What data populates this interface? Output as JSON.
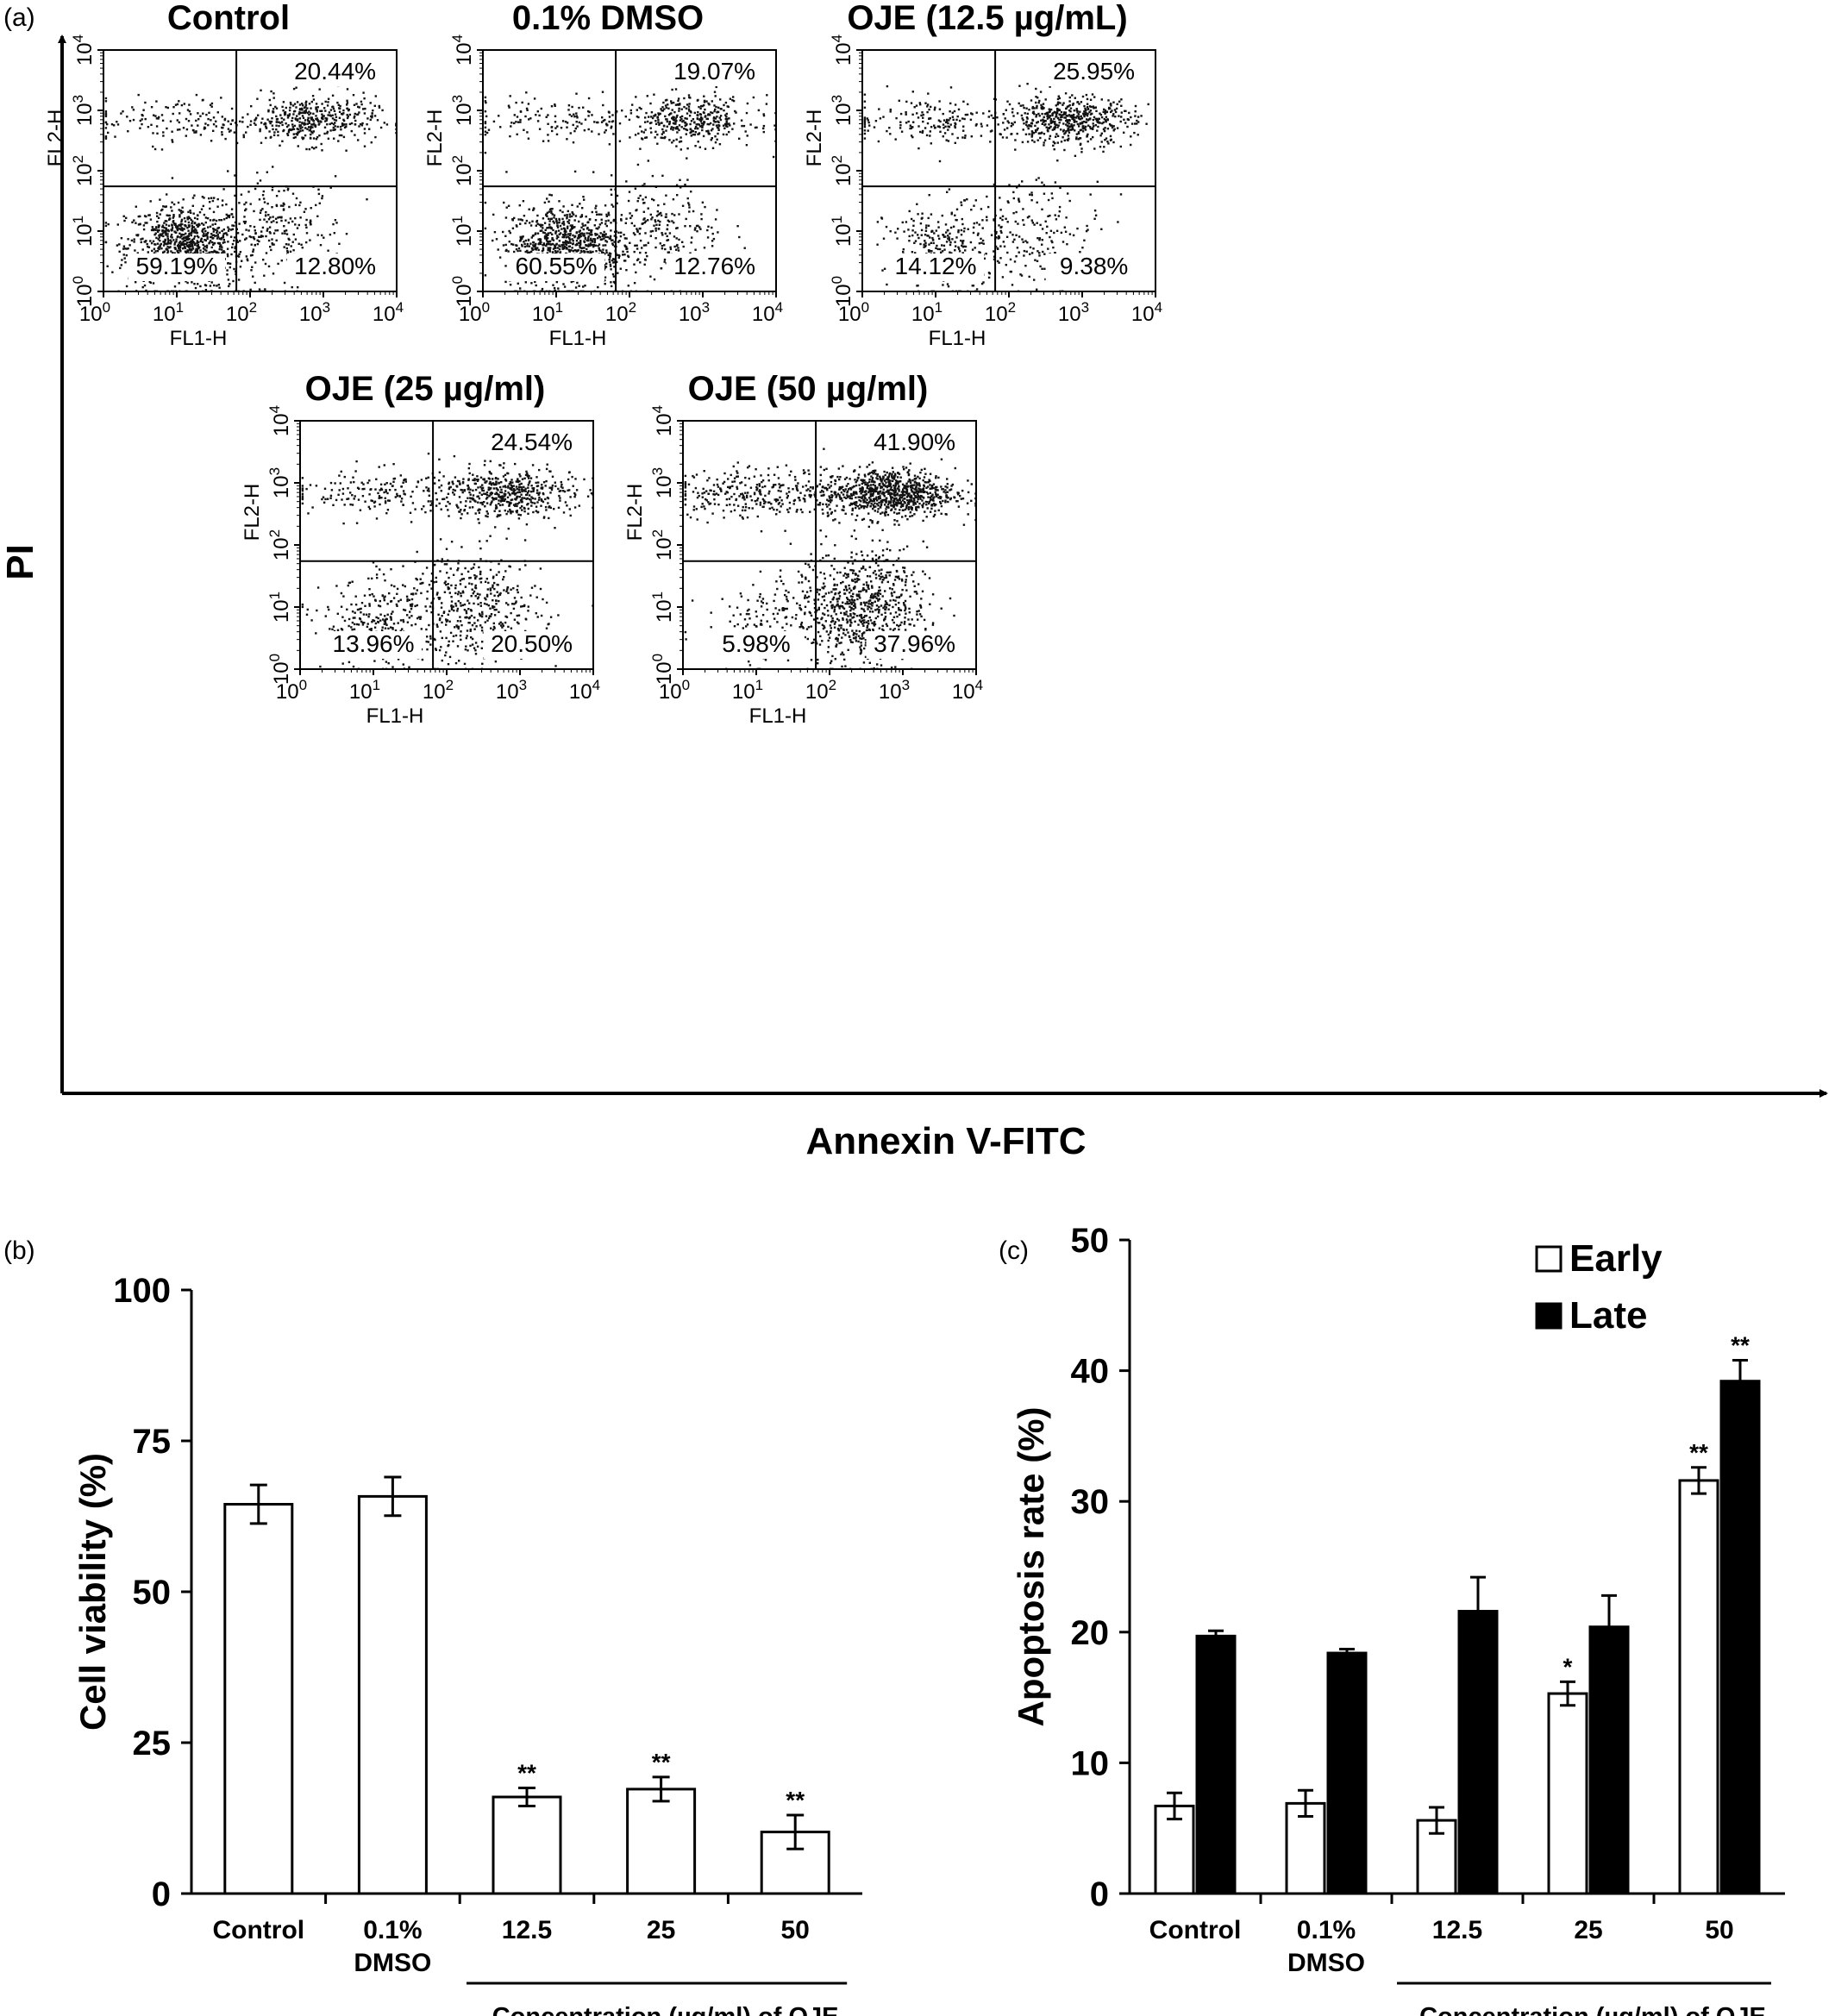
{
  "panel_a": {
    "label": "(a)",
    "y_axis_label": "PI",
    "x_axis_label": "Annexin V-FITC",
    "plot_xlabel": "FL1-H",
    "plot_ylabel": "FL2-H",
    "tick_base": "10",
    "tick_exponents": [
      "0",
      "1",
      "2",
      "3",
      "4"
    ]
  },
  "panel_b": {
    "label": "(b)"
  },
  "panel_c": {
    "label": "(c)"
  },
  "chart_data": [
    {
      "type": "scatter",
      "title": "Control",
      "xlabel": "FL1-H",
      "ylabel": "FL2-H",
      "scale": "log",
      "xlim": [
        1,
        10000
      ],
      "ylim": [
        1,
        10000
      ],
      "gate": {
        "x": 65,
        "y": 55
      },
      "quadrants": {
        "upper_right": "20.44%",
        "lower_left": "59.19%",
        "lower_right": "12.80%"
      }
    },
    {
      "type": "scatter",
      "title": "0.1% DMSO",
      "xlabel": "FL1-H",
      "ylabel": "FL2-H",
      "scale": "log",
      "xlim": [
        1,
        10000
      ],
      "ylim": [
        1,
        10000
      ],
      "gate": {
        "x": 65,
        "y": 55
      },
      "quadrants": {
        "upper_right": "19.07%",
        "lower_left": "60.55%",
        "lower_right": "12.76%"
      }
    },
    {
      "type": "scatter",
      "title": "OJE (12.5 µg/mL)",
      "xlabel": "FL1-H",
      "ylabel": "FL2-H",
      "scale": "log",
      "xlim": [
        1,
        10000
      ],
      "ylim": [
        1,
        10000
      ],
      "gate": {
        "x": 65,
        "y": 55
      },
      "quadrants": {
        "upper_right": "25.95%",
        "lower_left": "14.12%",
        "lower_right": "9.38%"
      }
    },
    {
      "type": "scatter",
      "title": "OJE (25 µg/ml)",
      "xlabel": "FL1-H",
      "ylabel": "FL2-H",
      "scale": "log",
      "xlim": [
        1,
        10000
      ],
      "ylim": [
        1,
        10000
      ],
      "gate": {
        "x": 65,
        "y": 55
      },
      "quadrants": {
        "upper_right": "24.54%",
        "lower_left": "13.96%",
        "lower_right": "20.50%"
      }
    },
    {
      "type": "scatter",
      "title": "OJE (50 µg/ml)",
      "xlabel": "FL1-H",
      "ylabel": "FL2-H",
      "scale": "log",
      "xlim": [
        1,
        10000
      ],
      "ylim": [
        1,
        10000
      ],
      "gate": {
        "x": 65,
        "y": 55
      },
      "quadrants": {
        "upper_right": "41.90%",
        "lower_left": "5.98%",
        "lower_right": "37.96%"
      }
    },
    {
      "type": "bar",
      "ylabel": "Cell viability (%)",
      "ylim": [
        0,
        100
      ],
      "yticks": [
        "0",
        "25",
        "50",
        "75",
        "100"
      ],
      "categories": [
        [
          "Control"
        ],
        [
          "0.1%",
          "DMSO"
        ],
        [
          "12.5"
        ],
        [
          "25"
        ],
        [
          "50"
        ]
      ],
      "group_label": "Concentration (µg/ml) of OJE",
      "values": [
        64.5,
        65.8,
        16.0,
        17.3,
        10.2
      ],
      "errors": [
        3.2,
        3.2,
        1.5,
        2.0,
        2.8
      ],
      "significance": [
        "",
        "",
        "**",
        "**",
        "**"
      ]
    },
    {
      "type": "bar",
      "ylabel": "Apoptosis rate (%)",
      "ylim": [
        0,
        50
      ],
      "yticks": [
        "0",
        "10",
        "20",
        "30",
        "40",
        "50"
      ],
      "categories": [
        [
          "Control"
        ],
        [
          "0.1%",
          "DMSO"
        ],
        [
          "12.5"
        ],
        [
          "25"
        ],
        [
          "50"
        ]
      ],
      "group_label": "Concentration (µg/ml) of OJE",
      "legend_position": "top-right",
      "series": [
        {
          "name": "Early",
          "color": "#ffffff",
          "values": [
            6.7,
            6.9,
            5.6,
            15.3,
            31.6
          ],
          "errors": [
            1.0,
            1.0,
            1.0,
            0.9,
            1.0
          ],
          "significance": [
            "",
            "",
            "",
            "*",
            "**"
          ]
        },
        {
          "name": "Late",
          "color": "#000000",
          "values": [
            19.7,
            18.4,
            21.6,
            20.4,
            39.2
          ],
          "errors": [
            0.4,
            0.3,
            2.6,
            2.4,
            1.6
          ],
          "significance": [
            "",
            "",
            "",
            "",
            "**"
          ]
        }
      ]
    }
  ]
}
